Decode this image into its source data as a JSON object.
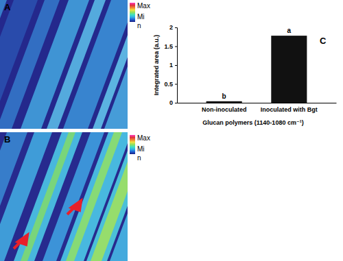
{
  "images": [
    {
      "label": "A",
      "colorbar_max": "Max",
      "colorbar_min": [
        "Mi",
        "n"
      ]
    },
    {
      "label": "B",
      "colorbar_max": "Max",
      "colorbar_min": [
        "Mi",
        "n"
      ]
    }
  ],
  "chart_data": {
    "type": "bar",
    "panel": "C",
    "y_label": "Integrated area (a.u.)",
    "x_label": "Glucan polymers (1140-1080 cm⁻¹)",
    "categories": [
      "Non-inoculated",
      "Inoculated with Bgt"
    ],
    "values": [
      0.04,
      1.78
    ],
    "annotations": [
      "b",
      "a"
    ],
    "color": "#111111",
    "ylim": [
      0,
      2
    ],
    "yticks": [
      0,
      0.5,
      1,
      1.5,
      2
    ]
  }
}
